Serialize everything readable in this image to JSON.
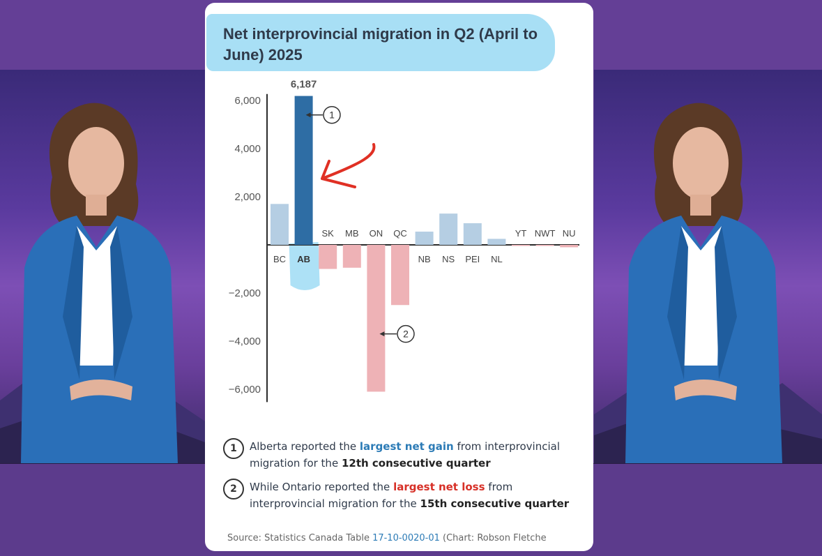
{
  "colors": {
    "highlight_bar": "#2e6da4",
    "positive_bar": "#b5cee3",
    "negative_bar": "#eeb2b6",
    "axis": "#2b2b2b",
    "annotation_arrow": "#e03024",
    "highlighter": "#9fdcf4"
  },
  "card": {
    "title": "Net interprovincial migration in Q2 (April to June) 2025"
  },
  "chart_data": {
    "type": "bar",
    "title": "Net interprovincial migration in Q2 (April to June) 2025",
    "categories": [
      "BC",
      "AB",
      "SK",
      "MB",
      "ON",
      "QC",
      "NB",
      "NS",
      "PEI",
      "NL",
      "YT",
      "NWT",
      "NU"
    ],
    "values": [
      1700,
      6187,
      -1000,
      -950,
      -6100,
      -2500,
      550,
      1300,
      900,
      250,
      -30,
      -10,
      -100
    ],
    "highlight": "AB",
    "ylim": [
      -6300,
      6500
    ],
    "yticks": [
      6000,
      4000,
      2000,
      -2000,
      -4000,
      -6000
    ],
    "ytick_labels": [
      "6,000",
      "4,000",
      "2,000",
      "−2,000",
      "−4,000",
      "−6,000"
    ],
    "value_label": "6,187",
    "xlabel": "",
    "ylabel": "",
    "callouts": [
      {
        "number": "1",
        "target": "AB"
      },
      {
        "number": "2",
        "target": "ON"
      }
    ]
  },
  "notes": {
    "note1": {
      "badge": "1",
      "text_before": "Alberta reported the ",
      "highlight": "largest net gain",
      "text_after": " from interprovincial migration for the ",
      "strong": "12th consecutive quarter"
    },
    "note2": {
      "badge": "2",
      "text_before": "While Ontario reported the ",
      "highlight": "largest net loss",
      "text_after": " from interprovincial migration for the ",
      "strong": "15th consecutive quarter"
    }
  },
  "source": {
    "prefix": "Source: Statistics Canada Table ",
    "table_id": "17-10-0020-01",
    "suffix": " (Chart: Robson Fletche"
  }
}
